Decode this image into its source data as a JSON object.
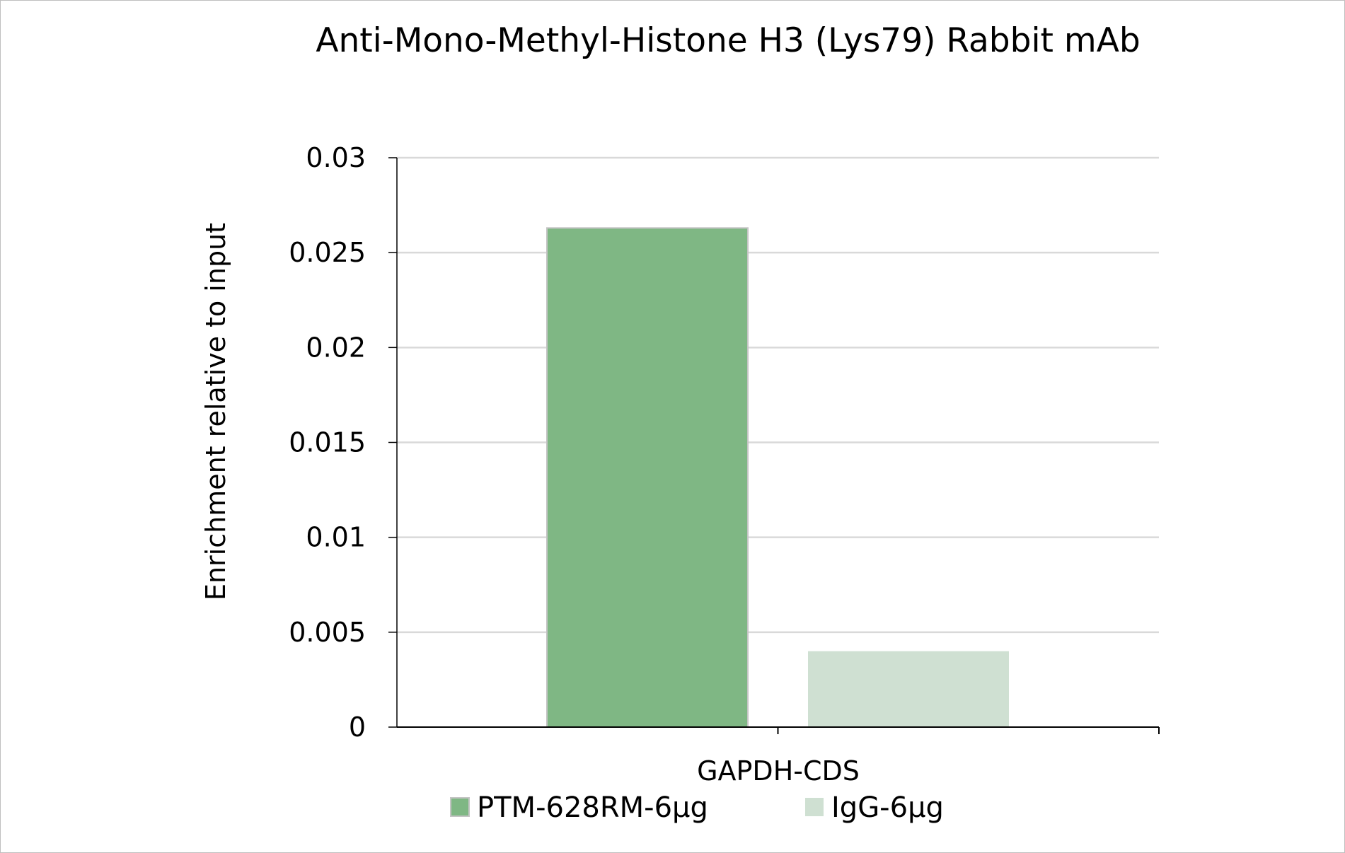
{
  "chart_data": {
    "type": "bar",
    "title": "Anti-Mono-Methyl-Histone H3 (Lys79) Rabbit mAb",
    "xlabel": "",
    "ylabel": "Enrichment relative to input",
    "categories": [
      "GAPDH-CDS"
    ],
    "series": [
      {
        "name": "PTM-628RM-6μg",
        "values": [
          0.0263
        ],
        "color": "#7fb784"
      },
      {
        "name": "IgG-6μg",
        "values": [
          0.004
        ],
        "color": "#cfe0d2"
      }
    ],
    "ylim": [
      0,
      0.03
    ],
    "yticks": [
      "0",
      "0.005",
      "0.01",
      "0.015",
      "0.02",
      "0.025",
      "0.03"
    ],
    "grid": true,
    "legend": "bottom"
  }
}
